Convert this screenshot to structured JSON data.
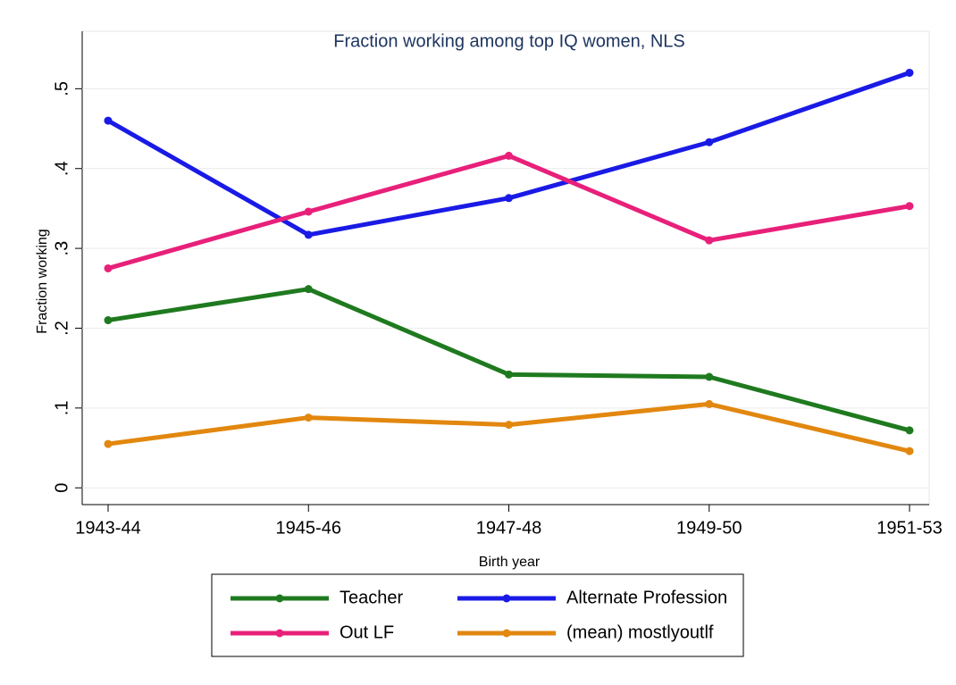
{
  "chart_data": {
    "type": "line",
    "title": "Fraction working among top IQ women, NLS",
    "x_label": "Birth year",
    "y_label": "Fraction working",
    "categories": [
      "1943-44",
      "1945-46",
      "1947-48",
      "1949-50",
      "1951-53"
    ],
    "series": [
      {
        "name": "Teacher",
        "color": "#1f7a1f",
        "values": [
          0.21,
          0.249,
          0.142,
          0.139,
          0.072
        ]
      },
      {
        "name": "Alternate Profession",
        "color": "#1a1ae6",
        "values": [
          0.46,
          0.317,
          0.363,
          0.433,
          0.52
        ]
      },
      {
        "name": "Out LF",
        "color": "#e8207a",
        "values": [
          0.275,
          0.346,
          0.416,
          0.31,
          0.353
        ]
      },
      {
        "name": "(mean) mostlyoutlf",
        "color": "#e2870f",
        "values": [
          0.055,
          0.088,
          0.079,
          0.105,
          0.046
        ]
      }
    ],
    "ylim": [
      -0.021,
      0.572
    ],
    "yticks": [
      0,
      {
        "value": 0.1,
        "label": ".1"
      },
      {
        "value": 0.2,
        "label": ".2"
      },
      {
        "value": 0.3,
        "label": ".3"
      },
      {
        "value": 0.4,
        "label": ".4"
      },
      {
        "value": 0.5,
        "label": ".5"
      }
    ],
    "grid": true
  }
}
